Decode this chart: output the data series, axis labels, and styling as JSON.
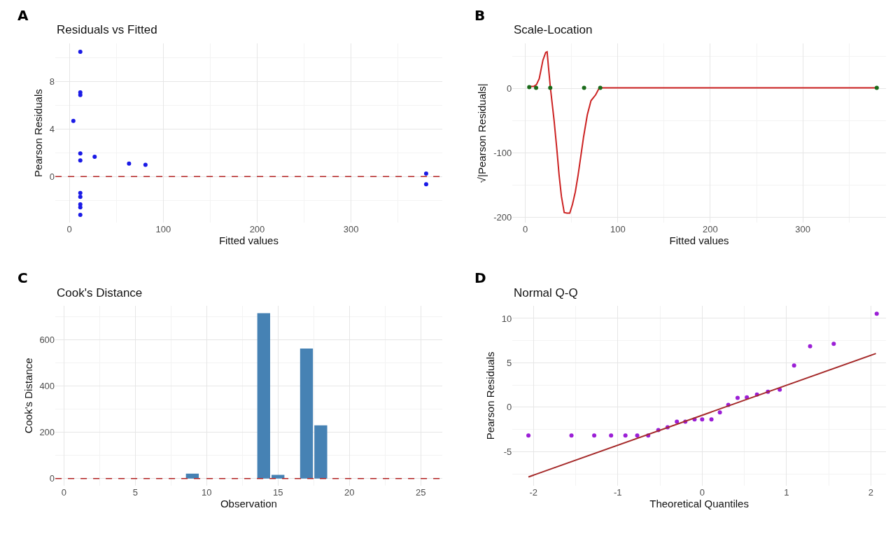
{
  "chart_data": [
    {
      "type": "scatter",
      "title": "Residuals vs Fitted",
      "xlabel": "Fitted values",
      "ylabel": "Pearson Residuals",
      "annotations": [
        "A"
      ],
      "series": [
        {
          "type": "scatter",
          "marker": "circle",
          "color": "#1a1ae6",
          "x": [
            11.6,
            11.6,
            11.6,
            4.2,
            11.6,
            11.6,
            26.9,
            63.5,
            81,
            380,
            380,
            11.6,
            11.6,
            11.6,
            11.6,
            11.6
          ],
          "values": [
            10.5,
            7.07,
            6.85,
            4.68,
            1.94,
            1.35,
            1.66,
            1.08,
            0.98,
            0.25,
            -0.65,
            -1.39,
            -1.72,
            -2.35,
            -2.6,
            -3.23
          ]
        }
      ],
      "xlim": [
        -15,
        397
      ],
      "ylim": [
        -3.9,
        11.2
      ],
      "xticks": [
        0,
        100,
        200,
        300
      ],
      "yticks": [
        0,
        4,
        8
      ],
      "grid": true,
      "ref_lines": [
        {
          "axis": "y",
          "value": 0,
          "color": "#b22222",
          "line_style": "dashed"
        }
      ]
    },
    {
      "type": "scatter",
      "title": "Scale-Location",
      "xlabel": "Fitted values",
      "ylabel": "√|Pearson Residuals|",
      "annotations": [
        "B"
      ],
      "series": [
        {
          "type": "line",
          "marker": "none",
          "color": "#cc2222",
          "line_style": "solid",
          "x": [
            4,
            9,
            12,
            15,
            19,
            22,
            23.5,
            25,
            27,
            31,
            34,
            36.5,
            39,
            42,
            45,
            48,
            51,
            54,
            57,
            60,
            63,
            67,
            71,
            76,
            80,
            379
          ],
          "values": [
            3,
            3,
            6,
            15,
            44,
            56,
            57,
            33,
            2,
            -49,
            -94,
            -135,
            -168,
            -193,
            -194,
            -194,
            -180,
            -161,
            -135,
            -105,
            -75,
            -41,
            -19,
            -10,
            1,
            1
          ]
        },
        {
          "type": "scatter",
          "marker": "circle",
          "color": "#1a6b1a",
          "x": [
            4.2,
            11.6,
            26.9,
            63.5,
            81,
            380
          ],
          "values": [
            2,
            1,
            1,
            1,
            1,
            1
          ]
        }
      ],
      "xlim": [
        -14,
        390
      ],
      "ylim": [
        -209,
        70
      ],
      "xticks": [
        0,
        100,
        200,
        300
      ],
      "yticks": [
        -200,
        -100,
        0
      ],
      "grid": true
    },
    {
      "type": "bar",
      "title": "Cook's Distance",
      "xlabel": "Observation",
      "ylabel": "Cook's Distance",
      "annotations": [
        "C"
      ],
      "color": "#4682b4",
      "x": [
        1,
        2,
        3,
        4,
        5,
        6,
        7,
        8,
        9,
        10,
        11,
        12,
        13,
        14,
        15,
        16,
        17,
        18,
        19,
        20,
        21,
        22,
        23,
        24,
        25
      ],
      "values": [
        0,
        0,
        0,
        0,
        0,
        0,
        0,
        0,
        21,
        0,
        0,
        0,
        0,
        716,
        16,
        0,
        563,
        230,
        0,
        0,
        0,
        0,
        0,
        0,
        0
      ],
      "xlim": [
        -0.6,
        26.5
      ],
      "ylim": [
        -30,
        747
      ],
      "xticks": [
        0,
        5,
        10,
        15,
        20,
        25
      ],
      "yticks": [
        0,
        200,
        400,
        600
      ],
      "grid": true,
      "ref_lines": [
        {
          "axis": "y",
          "value": 0,
          "color": "#b22222",
          "line_style": "dashed"
        }
      ]
    },
    {
      "type": "scatter",
      "title": "Normal Q-Q",
      "xlabel": "Theoretical Quantiles",
      "ylabel": "Pearson Residuals",
      "annotations": [
        "D"
      ],
      "series": [
        {
          "type": "scatter",
          "marker": "circle",
          "color": "#9b1fd6",
          "x": [
            -2.06,
            -1.55,
            -1.28,
            -1.08,
            -0.91,
            -0.77,
            -0.64,
            -0.52,
            -0.41,
            -0.3,
            -0.2,
            -0.09,
            0,
            0.11,
            0.21,
            0.31,
            0.42,
            0.53,
            0.65,
            0.78,
            0.92,
            1.09,
            1.28,
            1.56,
            2.07
          ],
          "values": [
            -3.19,
            -3.19,
            -3.19,
            -3.19,
            -3.19,
            -3.19,
            -3.19,
            -2.56,
            -2.26,
            -1.63,
            -1.63,
            -1.36,
            -1.36,
            -1.36,
            -0.57,
            0.27,
            1.06,
            1.12,
            1.42,
            1.74,
            1.99,
            4.71,
            6.87,
            7.14,
            10.54
          ]
        },
        {
          "type": "line",
          "marker": "none",
          "color": "#a52a2a",
          "line_style": "solid",
          "x": [
            -2.06,
            2.06
          ],
          "values": [
            -7.85,
            6.05
          ]
        }
      ],
      "xlim": [
        -2.25,
        2.18
      ],
      "ylim": [
        -8.8,
        11.4
      ],
      "xticks": [
        -2,
        -1,
        0,
        1,
        2
      ],
      "yticks": [
        -5,
        0,
        5,
        10
      ],
      "grid": true
    }
  ]
}
